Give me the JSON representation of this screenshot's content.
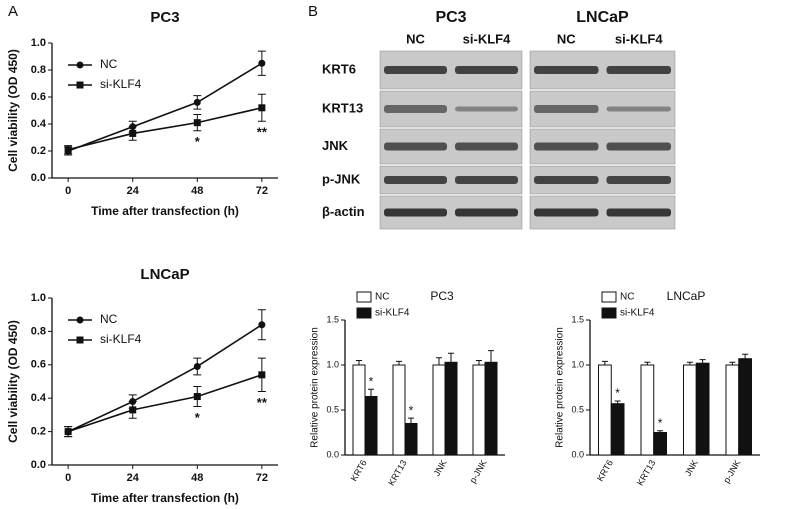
{
  "panel_labels": [
    "A",
    "B"
  ],
  "blot": {
    "cell_lines": [
      "PC3",
      "LNCaP"
    ],
    "lanes": [
      [
        "NC",
        "si-KLF4"
      ],
      [
        "NC",
        "si-KLF4"
      ]
    ],
    "proteins": [
      "KRT6",
      "KRT13",
      "JNK",
      "p-JNK",
      "β-actin"
    ]
  },
  "chart_data": [
    {
      "type": "line",
      "title": "PC3",
      "xlabel": "Time after transfection (h)",
      "ylabel": "Cell viability (OD 450)",
      "x": [
        0,
        24,
        48,
        72
      ],
      "xlim": [
        -6,
        78
      ],
      "xticks": [
        0,
        24,
        48,
        72
      ],
      "ylim": [
        0,
        1
      ],
      "yticks": [
        {
          "value": 0,
          "label": "0.0"
        },
        0.2,
        0.4,
        0.6,
        0.8,
        {
          "value": 1,
          "label": "1.0"
        }
      ],
      "legend": "upper left",
      "series": [
        {
          "name": "NC",
          "color": "#111111",
          "marker": "circle",
          "values": [
            0.2,
            0.38,
            0.56,
            0.85
          ],
          "errors": [
            0.03,
            0.04,
            0.05,
            0.09
          ]
        },
        {
          "name": "si-KLF4",
          "color": "#111111",
          "marker": "square",
          "values": [
            0.21,
            0.33,
            0.41,
            0.52
          ],
          "errors": [
            0.03,
            0.05,
            0.06,
            0.1
          ]
        }
      ],
      "annotations": [
        {
          "x": 48,
          "text": "*"
        },
        {
          "x": 72,
          "text": "**"
        }
      ]
    },
    {
      "type": "line",
      "title": "LNCaP",
      "xlabel": "Time after transfection (h)",
      "ylabel": "Cell viability (OD 450)",
      "x": [
        0,
        24,
        48,
        72
      ],
      "xlim": [
        -6,
        78
      ],
      "xticks": [
        0,
        24,
        48,
        72
      ],
      "ylim": [
        0,
        1
      ],
      "yticks": [
        {
          "value": 0,
          "label": "0.0"
        },
        0.2,
        0.4,
        0.6,
        0.8,
        {
          "value": 1,
          "label": "1.0"
        }
      ],
      "legend": "upper left",
      "series": [
        {
          "name": "NC",
          "color": "#111111",
          "marker": "circle",
          "values": [
            0.2,
            0.38,
            0.59,
            0.84
          ],
          "errors": [
            0.03,
            0.04,
            0.05,
            0.09
          ]
        },
        {
          "name": "si-KLF4",
          "color": "#111111",
          "marker": "square",
          "values": [
            0.2,
            0.33,
            0.41,
            0.54
          ],
          "errors": [
            0.03,
            0.05,
            0.06,
            0.1
          ]
        }
      ],
      "annotations": [
        {
          "x": 48,
          "text": "*"
        },
        {
          "x": 72,
          "text": "**"
        }
      ]
    },
    {
      "type": "bar",
      "title": "PC3",
      "ylabel": "Relative protein expression",
      "categories": [
        "KRT6",
        "KRT13",
        "JNK",
        "p-JNK"
      ],
      "ylim": [
        0,
        1.5
      ],
      "yticks": [
        {
          "value": 0,
          "label": "0.0"
        },
        0.5,
        {
          "value": 1,
          "label": "1.0"
        },
        1.5
      ],
      "legend": "top left",
      "series": [
        {
          "name": "NC",
          "color": "#ffffff",
          "values": [
            1.0,
            1.0,
            1.0,
            1.0
          ],
          "errors": [
            0.05,
            0.04,
            0.08,
            0.05
          ]
        },
        {
          "name": "si-KLF4",
          "color": "#111111",
          "values": [
            0.65,
            0.35,
            1.03,
            1.03
          ],
          "errors": [
            0.08,
            0.06,
            0.1,
            0.13
          ]
        }
      ],
      "annotations": [
        {
          "category": "KRT6",
          "text": "*"
        },
        {
          "category": "KRT13",
          "text": "*"
        }
      ]
    },
    {
      "type": "bar",
      "title": "LNCaP",
      "ylabel": "Relative protein expression",
      "categories": [
        "KRT6",
        "KRT13",
        "JNK",
        "p-JNK"
      ],
      "ylim": [
        0,
        1.5
      ],
      "yticks": [
        {
          "value": 0,
          "label": "0.0"
        },
        0.5,
        {
          "value": 1,
          "label": "1.0"
        },
        1.5
      ],
      "legend": "top left",
      "series": [
        {
          "name": "NC",
          "color": "#ffffff",
          "values": [
            1.0,
            1.0,
            1.0,
            1.0
          ],
          "errors": [
            0.04,
            0.03,
            0.03,
            0.03
          ]
        },
        {
          "name": "si-KLF4",
          "color": "#111111",
          "values": [
            0.57,
            0.25,
            1.02,
            1.07
          ],
          "errors": [
            0.03,
            0.02,
            0.04,
            0.05
          ]
        }
      ],
      "annotations": [
        {
          "category": "KRT6",
          "text": "*"
        },
        {
          "category": "KRT13",
          "text": "*"
        }
      ]
    }
  ]
}
